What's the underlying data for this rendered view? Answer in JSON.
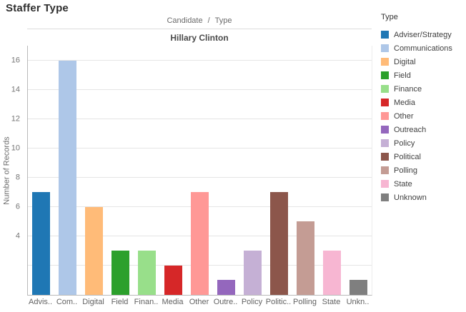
{
  "page": {
    "title": "Staffer Type"
  },
  "header": {
    "column_fields": {
      "candidate": "Candidate",
      "separator": "/",
      "type": "Type"
    },
    "pane": "Hillary Clinton"
  },
  "axes": {
    "y_title": "Number of Records"
  },
  "legend": {
    "title": "Type"
  },
  "chart_data": {
    "type": "bar",
    "title": "Staffer Type",
    "column_fields": [
      "Candidate",
      "Type"
    ],
    "pane_label": "Hillary Clinton",
    "ylabel": "Number of Records",
    "xlabel": "",
    "ylim": [
      0,
      17
    ],
    "grid": true,
    "legend_title": "Type",
    "legend_position": "right",
    "gridline_values": [
      2,
      4,
      6,
      8,
      10,
      12,
      14,
      16
    ],
    "ytick_labels_visible": [
      16,
      14,
      12,
      10,
      8,
      6,
      4
    ],
    "categories": [
      "Adviser/Strategy",
      "Communications",
      "Digital",
      "Field",
      "Finance",
      "Media",
      "Other",
      "Outreach",
      "Policy",
      "Political",
      "Polling",
      "State",
      "Unknown"
    ],
    "category_axis_labels": [
      "Advis..",
      "Com..",
      "Digital",
      "Field",
      "Finan..",
      "Media",
      "Other",
      "Outre..",
      "Policy",
      "Politic..",
      "Polling",
      "State",
      "Unkn.."
    ],
    "values": [
      7,
      16,
      6,
      3,
      3,
      2,
      7,
      1,
      3,
      7,
      5,
      3,
      1
    ],
    "colors": [
      "#1f77b4",
      "#aec7e8",
      "#ffbb78",
      "#2ca02c",
      "#98df8a",
      "#d62728",
      "#ff9896",
      "#9467bd",
      "#c5b0d5",
      "#8c564b",
      "#c49c94",
      "#f7b6d2",
      "#7f7f7f"
    ]
  }
}
